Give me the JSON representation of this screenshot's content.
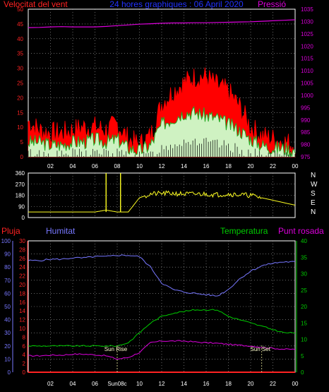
{
  "header": {
    "left_title": "Velocitat del vent",
    "center_title": "24 hores graphiques : 06 April 2020",
    "right_title": "Pressió"
  },
  "colors": {
    "background": "#000000",
    "gust": "#ff0000",
    "wind_avg": "#22aa22",
    "wind_min": "#ccffcc",
    "pressure": "#dd00dd",
    "direction": "#ffff22",
    "rain": "#ff2222",
    "humidity": "#7777ff",
    "temperature": "#00cc00",
    "dewpoint": "#dd00dd",
    "grid": "#aaaaaa",
    "axis_text": "#ffffff"
  },
  "time_ticks": [
    "02",
    "04",
    "06",
    "08",
    "10",
    "12",
    "14",
    "16",
    "18",
    "20",
    "22",
    "00"
  ],
  "time_ticks_bottom": [
    "02",
    "04",
    "06",
    "Sun08c",
    "10",
    "12",
    "14",
    "16",
    "18",
    "20",
    "22",
    "00"
  ],
  "chart_data": [
    {
      "type": "line",
      "title": "24 hores graphiques : 06 April 2020",
      "xlabel": "",
      "ylabel": "Velocitat del vent",
      "y2label": "Pressió",
      "x": [
        "00",
        "01",
        "02",
        "03",
        "04",
        "05",
        "06",
        "07",
        "08",
        "09",
        "10",
        "11",
        "12",
        "13",
        "14",
        "15",
        "16",
        "17",
        "18",
        "19",
        "20",
        "21",
        "22",
        "23",
        "24"
      ],
      "ylim": [
        0,
        50
      ],
      "y2lim": [
        975,
        1035
      ],
      "yticks": [
        "0",
        "5",
        "10",
        "15",
        "20",
        "25",
        "30",
        "35",
        "40",
        "45",
        "50"
      ],
      "y2ticks": [
        "975",
        "980",
        "985",
        "990",
        "995",
        "1000",
        "1005",
        "1010",
        "1015",
        "1020",
        "1025",
        "1030",
        "1035"
      ],
      "series": [
        {
          "name": "gust",
          "values": [
            12,
            9,
            8,
            8,
            9,
            10,
            10,
            9,
            11,
            6,
            4,
            7,
            18,
            22,
            25,
            27,
            27,
            24,
            22,
            17,
            10,
            7,
            6,
            5,
            4
          ]
        },
        {
          "name": "average",
          "values": [
            5,
            5,
            4,
            4,
            5,
            5,
            6,
            5,
            6,
            3,
            2,
            4,
            11,
            13,
            15,
            15,
            14,
            13,
            11,
            9,
            6,
            4,
            3,
            3,
            2
          ]
        },
        {
          "name": "minimum",
          "values": [
            2,
            2,
            1,
            1,
            2,
            2,
            3,
            2,
            2,
            1,
            0,
            1,
            5,
            7,
            9,
            9,
            8,
            7,
            6,
            4,
            2,
            1,
            1,
            1,
            0
          ]
        },
        {
          "name": "Pressió",
          "axis": "right",
          "values": [
            1027.5,
            1027.6,
            1027.8,
            1027.9,
            1027.8,
            1027.8,
            1027.8,
            1028.0,
            1028.3,
            1028.6,
            1028.9,
            1029.1,
            1029.3,
            1029.4,
            1029.4,
            1029.5,
            1029.5,
            1029.6,
            1029.7,
            1029.8,
            1029.9,
            1030.1,
            1030.3,
            1030.5,
            1030.7
          ]
        }
      ]
    },
    {
      "type": "line",
      "title": "",
      "ylabel": "",
      "ylim": [
        0,
        360
      ],
      "yticks": [
        "0",
        "90",
        "180",
        "270",
        "360"
      ],
      "compass": [
        "N",
        "W",
        "S",
        "E",
        "N"
      ],
      "x": [
        "00",
        "01",
        "02",
        "03",
        "04",
        "05",
        "06",
        "07",
        "08",
        "09",
        "10",
        "11",
        "12",
        "13",
        "14",
        "15",
        "16",
        "17",
        "18",
        "19",
        "20",
        "21",
        "22",
        "23",
        "24"
      ],
      "series": [
        {
          "name": "direction",
          "values": [
            45,
            45,
            45,
            45,
            45,
            45,
            45,
            60,
            45,
            45,
            160,
            190,
            195,
            195,
            190,
            190,
            190,
            185,
            190,
            185,
            180,
            160,
            140,
            120,
            100
          ]
        }
      ],
      "spikes": [
        {
          "x": 7.0,
          "value": 360
        },
        {
          "x": 8.3,
          "value": 360
        }
      ]
    },
    {
      "type": "line",
      "title": "",
      "ylabels": [
        "Pluja",
        "Humitat",
        "Temperatura",
        "Punt rosada"
      ],
      "x": [
        "00",
        "01",
        "02",
        "03",
        "04",
        "05",
        "06",
        "07",
        "08",
        "09",
        "10",
        "11",
        "12",
        "13",
        "14",
        "15",
        "16",
        "17",
        "18",
        "19",
        "20",
        "21",
        "22",
        "23",
        "24"
      ],
      "humidity_ylim": [
        0,
        100
      ],
      "humidity_yticks": [
        "0",
        "10",
        "20",
        "30",
        "40",
        "50",
        "60",
        "70",
        "80",
        "90",
        "100"
      ],
      "rain_ylim": [
        0,
        30
      ],
      "rain_yticks": [
        "0",
        "2",
        "4",
        "6",
        "8",
        "10",
        "12",
        "14",
        "16",
        "18",
        "20",
        "22",
        "24",
        "26",
        "28",
        "30"
      ],
      "temp_ylim": [
        0,
        40
      ],
      "temp_yticks": [
        "0",
        "5",
        "10",
        "15",
        "20",
        "25",
        "30",
        "35",
        "40"
      ],
      "series": [
        {
          "name": "Pluja",
          "values": [
            0,
            0,
            0,
            0,
            0,
            0,
            0,
            0,
            0,
            0,
            0,
            0,
            0,
            0,
            0,
            0,
            0,
            0,
            0,
            0,
            0,
            0,
            0,
            0,
            0
          ]
        },
        {
          "name": "Humitat",
          "values": [
            85,
            85,
            86,
            86,
            87,
            87,
            88,
            88,
            89,
            89,
            88,
            80,
            68,
            63,
            61,
            60,
            59,
            58,
            63,
            71,
            77,
            81,
            83,
            84,
            84
          ]
        },
        {
          "name": "Temperatura",
          "values": [
            8,
            8,
            8,
            8,
            8,
            8,
            8,
            8,
            8,
            9,
            12,
            15,
            17,
            18,
            18.5,
            19,
            19,
            19,
            17,
            16,
            15,
            14,
            13,
            12,
            12
          ]
        },
        {
          "name": "Punt rosada",
          "values": [
            5,
            5,
            5.2,
            5.2,
            5.5,
            5.5,
            5.3,
            5,
            4,
            4.5,
            6,
            9,
            9.5,
            9.5,
            9.5,
            9.2,
            9,
            8.8,
            8.5,
            8.2,
            8,
            7.6,
            7.3,
            7,
            7
          ]
        }
      ],
      "annotations": [
        {
          "text": "Sun Rise",
          "x": 8.0
        },
        {
          "text": "Sun Set",
          "x": 21.0
        }
      ]
    }
  ]
}
